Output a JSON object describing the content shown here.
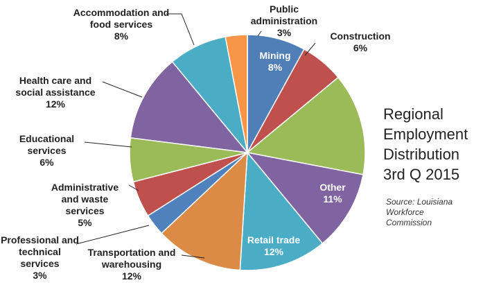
{
  "chart_data": {
    "type": "pie",
    "title": "Regional Employment Distribution 3rd Q 2015",
    "source": "Source: Louisiana Workforce Commission",
    "categories": [
      "Mining",
      "Construction",
      null,
      "Other",
      "Retail trade",
      "Transportation and warehousing",
      "Professional and technical services",
      "Administrative and waste services",
      "Educational services",
      "Health care and social assistance",
      "Accommodation and food services",
      "Public administration"
    ],
    "values": [
      8,
      6,
      14,
      11,
      12,
      12,
      3,
      5,
      6,
      12,
      8,
      3
    ],
    "value_labels": [
      "8%",
      "6%",
      null,
      "11%",
      "12%",
      "12%",
      "3%",
      "5%",
      "6%",
      "12%",
      "8%",
      "3%"
    ],
    "colors": [
      "#4f7fb6",
      "#c0504d",
      "#9bbb59",
      "#8064a2",
      "#4bacc6",
      "#db8b45",
      "#4f81bd",
      "#c0504d",
      "#9bbb59",
      "#8064a2",
      "#4bacc6",
      "#f79646"
    ]
  }
}
